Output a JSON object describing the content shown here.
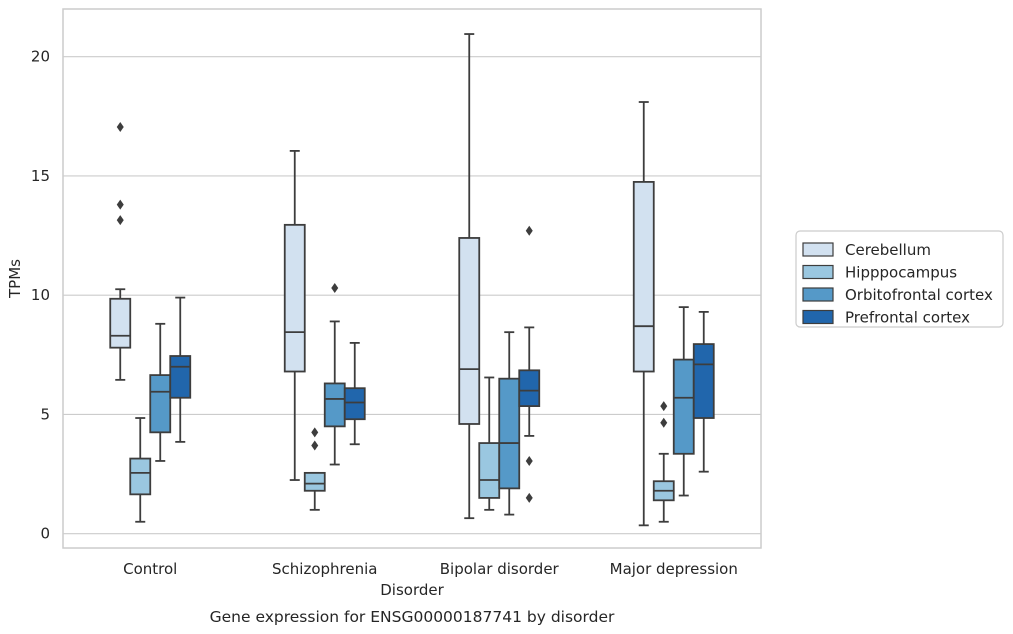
{
  "chart_data": {
    "type": "boxplot",
    "caption": "Gene expression for ENSG00000187741 by disorder",
    "xlabel": "Disorder",
    "ylabel": "TPMs",
    "ylim": [
      -0.6,
      22
    ],
    "yticks": [
      0,
      5,
      10,
      15,
      20
    ],
    "grid": "horizontal",
    "legend_position": "right",
    "categories": [
      "Control",
      "Schizophrenia",
      "Bipolar disorder",
      "Major depression"
    ],
    "series": [
      {
        "name": "Cerebellum",
        "color": "#d2e1f0",
        "boxes": [
          {
            "whislo": 6.45,
            "q1": 7.8,
            "med": 8.3,
            "q3": 9.85,
            "whishi": 10.25,
            "fliers": [
              13.15,
              13.8,
              17.05
            ]
          },
          {
            "whislo": 2.25,
            "q1": 6.8,
            "med": 8.45,
            "q3": 12.95,
            "whishi": 16.05,
            "fliers": []
          },
          {
            "whislo": 0.65,
            "q1": 4.6,
            "med": 6.9,
            "q3": 12.4,
            "whishi": 20.95,
            "fliers": []
          },
          {
            "whislo": 0.35,
            "q1": 6.8,
            "med": 8.7,
            "q3": 14.75,
            "whishi": 18.1,
            "fliers": []
          }
        ]
      },
      {
        "name": "Hipppocampus",
        "color": "#9ac7e0",
        "boxes": [
          {
            "whislo": 0.5,
            "q1": 1.65,
            "med": 2.55,
            "q3": 3.15,
            "whishi": 4.85,
            "fliers": []
          },
          {
            "whislo": 1.0,
            "q1": 1.8,
            "med": 2.1,
            "q3": 2.55,
            "whishi": 2.55,
            "fliers": [
              3.7,
              4.25
            ]
          },
          {
            "whislo": 1.0,
            "q1": 1.5,
            "med": 2.25,
            "q3": 3.8,
            "whishi": 6.55,
            "fliers": []
          },
          {
            "whislo": 0.5,
            "q1": 1.4,
            "med": 1.8,
            "q3": 2.2,
            "whishi": 3.35,
            "fliers": [
              4.65,
              5.35
            ]
          }
        ]
      },
      {
        "name": "Orbitofrontal cortex",
        "color": "#5599c8",
        "boxes": [
          {
            "whislo": 3.05,
            "q1": 4.25,
            "med": 5.95,
            "q3": 6.65,
            "whishi": 8.8,
            "fliers": []
          },
          {
            "whislo": 2.9,
            "q1": 4.5,
            "med": 5.65,
            "q3": 6.3,
            "whishi": 8.9,
            "fliers": [
              10.3
            ]
          },
          {
            "whislo": 0.8,
            "q1": 1.9,
            "med": 3.8,
            "q3": 6.5,
            "whishi": 8.45,
            "fliers": []
          },
          {
            "whislo": 1.6,
            "q1": 3.35,
            "med": 5.7,
            "q3": 7.3,
            "whishi": 9.5,
            "fliers": []
          }
        ]
      },
      {
        "name": "Prefrontal cortex",
        "color": "#2166ac",
        "boxes": [
          {
            "whislo": 3.85,
            "q1": 5.7,
            "med": 7.0,
            "q3": 7.45,
            "whishi": 9.9,
            "fliers": []
          },
          {
            "whislo": 3.75,
            "q1": 4.8,
            "med": 5.5,
            "q3": 6.1,
            "whishi": 8.0,
            "fliers": []
          },
          {
            "whislo": 4.1,
            "q1": 5.35,
            "med": 6.0,
            "q3": 6.85,
            "whishi": 8.65,
            "fliers": [
              1.5,
              3.05,
              12.7
            ]
          },
          {
            "whislo": 2.6,
            "q1": 4.85,
            "med": 7.1,
            "q3": 7.95,
            "whishi": 9.3,
            "fliers": []
          }
        ]
      }
    ]
  }
}
